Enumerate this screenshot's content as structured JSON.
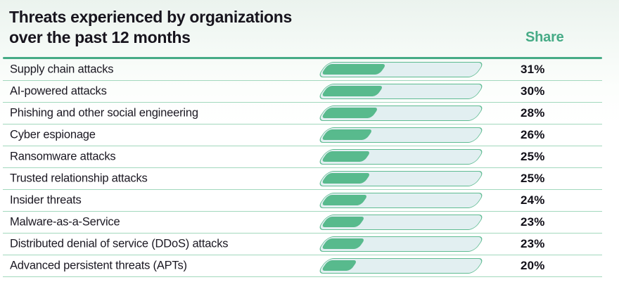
{
  "header": {
    "title_line1": "Threats experienced by organizations",
    "title_line2": "over the past 12 months",
    "share_label": "Share"
  },
  "rows": [
    {
      "label": "Supply chain attacks",
      "value": "31%",
      "percent": 31
    },
    {
      "label": "AI-powered attacks",
      "value": "30%",
      "percent": 30
    },
    {
      "label": "Phishing and other social engineering",
      "value": "28%",
      "percent": 28
    },
    {
      "label": "Cyber espionage",
      "value": "26%",
      "percent": 26
    },
    {
      "label": "Ransomware attacks",
      "value": "25%",
      "percent": 25
    },
    {
      "label": "Trusted relationship attacks",
      "value": "25%",
      "percent": 25
    },
    {
      "label": "Insider threats",
      "value": "24%",
      "percent": 24
    },
    {
      "label": "Malware-as-a-Service",
      "value": "23%",
      "percent": 23
    },
    {
      "label": "Distributed denial of service (DDoS) attacks",
      "value": "23%",
      "percent": 23
    },
    {
      "label": "Advanced persistent threats (APTs)",
      "value": "20%",
      "percent": 20
    }
  ],
  "chart_data": {
    "type": "bar",
    "orientation": "horizontal",
    "title": "Threats experienced by organizations over the past 12 months",
    "value_column_label": "Share",
    "unit": "%",
    "categories": [
      "Supply chain attacks",
      "AI-powered attacks",
      "Phishing and other social engineering",
      "Cyber espionage",
      "Ransomware attacks",
      "Trusted relationship attacks",
      "Insider threats",
      "Malware-as-a-Service",
      "Distributed denial of service (DDoS) attacks",
      "Advanced persistent threats (APTs)"
    ],
    "values": [
      31,
      30,
      28,
      26,
      25,
      25,
      24,
      23,
      23,
      20
    ],
    "value_labels": [
      "31%",
      "30%",
      "28%",
      "26%",
      "25%",
      "25%",
      "24%",
      "23%",
      "23%",
      "20%"
    ],
    "legend": "none",
    "grid": "row-separators-only"
  },
  "colors": {
    "accent_green": "#46ab86",
    "bar_fill": "#58ba8d",
    "bar_track": "#e2eff1",
    "bar_border": "#5fbc92",
    "row_separator": "#a2d8bd",
    "text_dark": "#17141d"
  }
}
